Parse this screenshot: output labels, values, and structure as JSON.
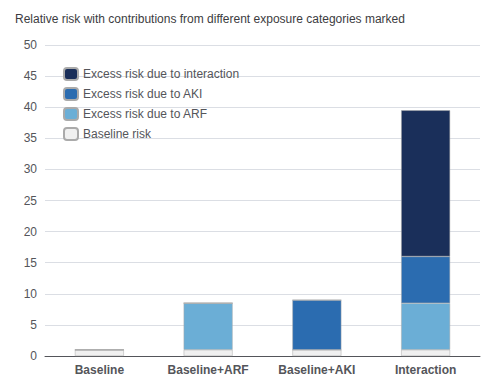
{
  "chart_data": {
    "type": "bar",
    "title": "Relative risk with contributions from different exposure categories marked",
    "categories": [
      "Baseline",
      "Baseline+ARF",
      "Baseline+AKI",
      "Interaction"
    ],
    "stacked": true,
    "series": [
      {
        "name": "Baseline risk",
        "color": "#f0f0f0",
        "values": [
          1.0,
          1.0,
          1.0,
          1.0
        ]
      },
      {
        "name": "Excess risk due to ARF",
        "color": "#6baed6",
        "values": [
          0.0,
          7.5,
          0.0,
          7.5
        ]
      },
      {
        "name": "Excess risk due to AKI",
        "color": "#2b6cb0",
        "values": [
          0.0,
          0.0,
          8.0,
          7.5
        ]
      },
      {
        "name": "Excess risk due to interaction",
        "color": "#1a2f5a",
        "values": [
          0.0,
          0.0,
          0.0,
          23.5
        ]
      }
    ],
    "ylim": [
      0,
      50
    ],
    "yticks": [
      0,
      5,
      10,
      15,
      20,
      25,
      30,
      35,
      40,
      45,
      50
    ],
    "grid": true,
    "legend": "upper left"
  }
}
